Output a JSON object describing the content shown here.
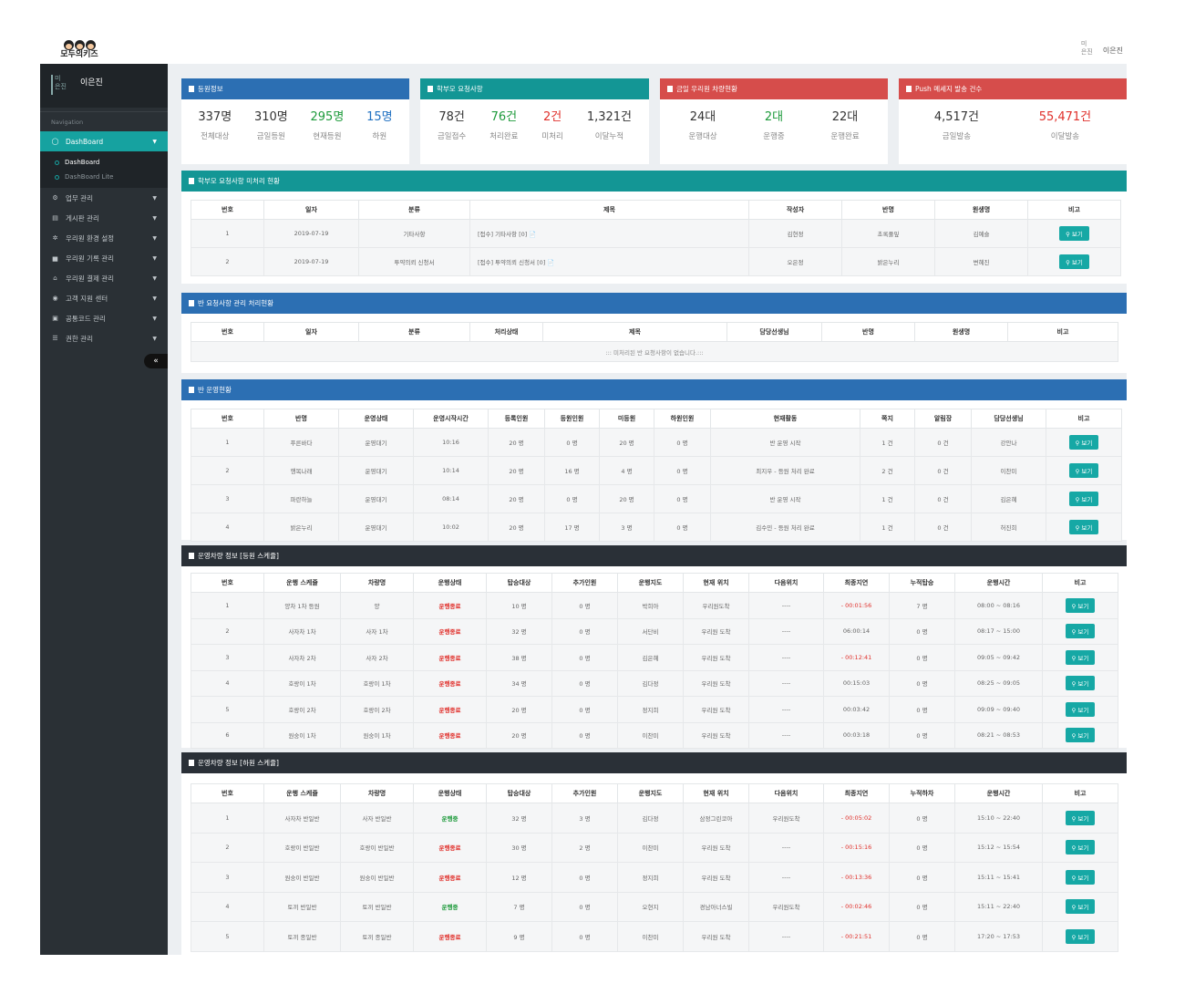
{
  "header": {
    "logo_text": "모두의키즈",
    "avatar_alt": "미\n은진",
    "user_name": "이은진"
  },
  "sidebar": {
    "avatar_alt": "미\n은진",
    "user_name": "이은진",
    "nav_label": "Navigation",
    "dashboard_label": "DashBoard",
    "sub_items": [
      "DashBoard",
      "DashBoard Lite"
    ],
    "items": [
      {
        "label": "업무 관리",
        "icon": "gear-icon"
      },
      {
        "label": "게시판 관리",
        "icon": "board-icon"
      },
      {
        "label": "우리원 환경 설정",
        "icon": "cogs-icon"
      },
      {
        "label": "우리원 기록 관리",
        "icon": "chart-icon"
      },
      {
        "label": "우리원 결제 관리",
        "icon": "bank-icon"
      },
      {
        "label": "고객 지원 센터",
        "icon": "car-icon"
      },
      {
        "label": "공통코드 관리",
        "icon": "gift-icon"
      },
      {
        "label": "권한 관리",
        "icon": "list-icon"
      }
    ],
    "collapse_symbol": "«"
  },
  "summary": [
    {
      "title": "등원정보",
      "color": "#2c6fb3",
      "stats": [
        {
          "num": "337명",
          "lbl": "전체대상",
          "tone": ""
        },
        {
          "num": "310명",
          "lbl": "금일등원",
          "tone": ""
        },
        {
          "num": "295명",
          "lbl": "현재등원",
          "tone": "green"
        },
        {
          "num": "15명",
          "lbl": "하원",
          "tone": "blue"
        }
      ]
    },
    {
      "title": "학부모 요청사항",
      "color": "#139695",
      "stats": [
        {
          "num": "78건",
          "lbl": "금일접수",
          "tone": ""
        },
        {
          "num": "76건",
          "lbl": "처리완료",
          "tone": "green"
        },
        {
          "num": "2건",
          "lbl": "미처리",
          "tone": "red"
        },
        {
          "num": "1,321건",
          "lbl": "이달누적",
          "tone": ""
        }
      ]
    },
    {
      "title": "금일 우리원 차량현황",
      "color": "#d64d4b",
      "stats": [
        {
          "num": "24대",
          "lbl": "운행대상",
          "tone": ""
        },
        {
          "num": "2대",
          "lbl": "운행중",
          "tone": "green"
        },
        {
          "num": "22대",
          "lbl": "운행완료",
          "tone": ""
        }
      ]
    },
    {
      "title": "Push 메세지 발송 건수",
      "color": "#d64d4b",
      "stats": [
        {
          "num": "4,517건",
          "lbl": "금일발송",
          "tone": ""
        },
        {
          "num": "55,471건",
          "lbl": "이달발송",
          "tone": "red"
        }
      ]
    }
  ],
  "request_table": {
    "title": "학부모 요청사항 미처리 현황",
    "headers": [
      "번호",
      "일자",
      "분류",
      "제목",
      "작성자",
      "반명",
      "원생명",
      "비고"
    ],
    "rows": [
      [
        "1",
        "2019-07-19",
        "기타사항",
        "[접수] 기타사항 [0] 📄",
        "김현정",
        "초록풀잎",
        "김예슬",
        "보기"
      ],
      [
        "2",
        "2019-07-19",
        "투약의뢰 신청서",
        "[접수] 투약의뢰 신청서 [0] 📄",
        "오은정",
        "밝은누리",
        "변혜진",
        "보기"
      ]
    ]
  },
  "class_request_table": {
    "title": "반 요청사항 관리 처리현황",
    "headers": [
      "번호",
      "일자",
      "분류",
      "처리상태",
      "제목",
      "담당선생님",
      "반명",
      "원생명",
      "비고"
    ],
    "empty": "::: 미처리된 반 요청사항이 없습니다.:::"
  },
  "class_table": {
    "title": "반 운영현황",
    "headers": [
      "번호",
      "반명",
      "운영상태",
      "운영시작시간",
      "등록인원",
      "등원인원",
      "미등원",
      "하원인원",
      "현재활동",
      "쪽지",
      "알림장",
      "담당선생님",
      "비고"
    ],
    "rows": [
      [
        "1",
        "푸른바다",
        "운영대기",
        "10:16",
        "20 명",
        "0 명",
        "20 명",
        "0 명",
        "반 운영 시작",
        "1 건",
        "0 건",
        "강안나",
        "보기"
      ],
      [
        "2",
        "행복나래",
        "운영대기",
        "10:14",
        "20 명",
        "16 명",
        "4 명",
        "0 명",
        "최지우 - 등원 처리 완료",
        "2 건",
        "0 건",
        "이찬미",
        "보기"
      ],
      [
        "3",
        "파란하늘",
        "운영대기",
        "08:14",
        "20 명",
        "0 명",
        "20 명",
        "0 명",
        "반 운영 시작",
        "1 건",
        "0 건",
        "김은혜",
        "보기"
      ],
      [
        "4",
        "밝은누리",
        "운영대기",
        "10:02",
        "20 명",
        "17 명",
        "3 명",
        "0 명",
        "김수민 - 등원 처리 완료",
        "1 건",
        "0 건",
        "허진희",
        "보기"
      ]
    ]
  },
  "bus_in_table": {
    "title": "운영차량 정보 [등원 스케쥴]",
    "headers": [
      "번호",
      "운행 스케쥴",
      "차량명",
      "운행상태",
      "탑승대상",
      "추가인원",
      "운행지도",
      "현재 위치",
      "다음위치",
      "최종지연",
      "누적탑승",
      "운행시간",
      "비고"
    ],
    "rows": [
      [
        "1",
        "양차 1차 등원",
        "양",
        "운행종료",
        "10 명",
        "0 명",
        "박희아",
        "우리원도착",
        "----",
        "- 00:01:56",
        "7 명",
        "08:00 ~ 08:16",
        "보기"
      ],
      [
        "2",
        "사자차 1차",
        "사자 1차",
        "운행종료",
        "32 명",
        "0 명",
        "서단비",
        "우리원 도착",
        "----",
        "06:00:14",
        "0 명",
        "08:17 ~ 15:00",
        "보기"
      ],
      [
        "3",
        "사자차 2차",
        "사자 2차",
        "운행종료",
        "38 명",
        "0 명",
        "김은혜",
        "우리원 도착",
        "----",
        "- 00:12:41",
        "0 명",
        "09:05 ~ 09:42",
        "보기"
      ],
      [
        "4",
        "호랑이 1차",
        "호랑이 1차",
        "운행종료",
        "34 명",
        "0 명",
        "김다정",
        "우리원 도착",
        "----",
        "00:15:03",
        "0 명",
        "08:25 ~ 09:05",
        "보기"
      ],
      [
        "5",
        "호랑이 2차",
        "호랑이 2차",
        "운행종료",
        "20 명",
        "0 명",
        "정지희",
        "우리원 도착",
        "----",
        "00:03:42",
        "0 명",
        "09:09 ~ 09:40",
        "보기"
      ],
      [
        "6",
        "원숭이 1차",
        "원숭이 1차",
        "운행종료",
        "20 명",
        "0 명",
        "이찬미",
        "우리원 도착",
        "----",
        "00:03:18",
        "0 명",
        "08:21 ~ 08:53",
        "보기"
      ]
    ]
  },
  "bus_out_table": {
    "title": "운영차량 정보 [하원 스케쥴]",
    "headers": [
      "번호",
      "운행 스케쥴",
      "차량명",
      "운행상태",
      "탑승대상",
      "추가인원",
      "운행지도",
      "현재 위치",
      "다음위치",
      "최종지연",
      "누적하차",
      "운행시간",
      "비고"
    ],
    "rows": [
      [
        "1",
        "사자차 반일반",
        "사자 반일반",
        "운행중",
        "32 명",
        "3 명",
        "김다정",
        "삼정그린코아",
        "우리원도착",
        "- 00:05:02",
        "0 명",
        "15:10 ~ 22:40",
        "보기"
      ],
      [
        "2",
        "호랑이 반일반",
        "호랑이 반일반",
        "운행종료",
        "30 명",
        "2 명",
        "이찬미",
        "우리원 도착",
        "----",
        "- 00:15:16",
        "0 명",
        "15:12 ~ 15:54",
        "보기"
      ],
      [
        "3",
        "원숭이 반일반",
        "원숭이 반일반",
        "운행종료",
        "12 명",
        "0 명",
        "정지희",
        "우리원 도착",
        "----",
        "- 00:13:36",
        "0 명",
        "15:11 ~ 15:41",
        "보기"
      ],
      [
        "4",
        "토끼 반일반",
        "토끼 반일반",
        "운행중",
        "7 명",
        "0 명",
        "오현지",
        "경남아너스빌",
        "우리원도착",
        "- 00:02:46",
        "0 명",
        "15:11 ~ 22:40",
        "보기"
      ],
      [
        "5",
        "토끼 종일반",
        "토끼 종일반",
        "운행종료",
        "9 명",
        "0 명",
        "이찬미",
        "우리원 도착",
        "----",
        "- 00:21:51",
        "0 명",
        "17:20 ~ 17:53",
        "보기"
      ]
    ]
  }
}
